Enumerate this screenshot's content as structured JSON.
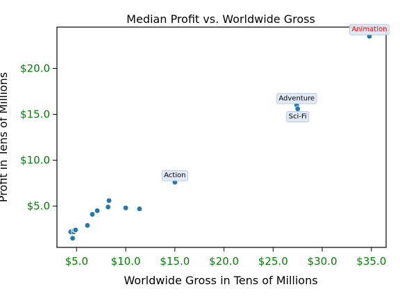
{
  "chart_data": {
    "type": "scatter",
    "title": "Median Profit vs. Worldwide Gross",
    "xlabel": "Worldwide Gross in Tens of Millions",
    "ylabel": "Profit in Tens of Millions",
    "xlim": [
      3.0,
      36.5
    ],
    "ylim": [
      0.5,
      24.5
    ],
    "x_ticks": [
      5,
      10,
      15,
      20,
      25,
      30,
      35
    ],
    "x_tick_labels": [
      "$5.0",
      "$10.0",
      "$15.0",
      "$20.0",
      "$25.0",
      "$30.0",
      "$35.0"
    ],
    "y_ticks": [
      5,
      10,
      15,
      20
    ],
    "y_tick_labels": [
      "$5.0",
      "$10.0",
      "$15.0",
      "$20.0"
    ],
    "tick_label_color": "#008000",
    "point_color": "#1f77b4",
    "points": [
      {
        "x": 4.4,
        "y": 2.2
      },
      {
        "x": 4.6,
        "y": 1.5
      },
      {
        "x": 4.7,
        "y": 2.2
      },
      {
        "x": 4.8,
        "y": 2.4
      },
      {
        "x": 4.9,
        "y": 2.4
      },
      {
        "x": 6.1,
        "y": 2.9
      },
      {
        "x": 6.6,
        "y": 4.1
      },
      {
        "x": 7.1,
        "y": 4.5
      },
      {
        "x": 8.2,
        "y": 4.9
      },
      {
        "x": 8.3,
        "y": 5.6
      },
      {
        "x": 10.0,
        "y": 4.8
      },
      {
        "x": 11.4,
        "y": 4.7
      },
      {
        "x": 15.0,
        "y": 7.6,
        "label": "Action",
        "label_color": "#000000"
      },
      {
        "x": 27.4,
        "y": 16.0,
        "label": "Adventure",
        "label_color": "#000000"
      },
      {
        "x": 27.5,
        "y": 15.6,
        "label": "Sci-Fi",
        "label_color": "#000000"
      },
      {
        "x": 34.8,
        "y": 23.5,
        "label": "Animation",
        "label_color": "#ff0000"
      }
    ],
    "grid": false,
    "legend": "none"
  }
}
